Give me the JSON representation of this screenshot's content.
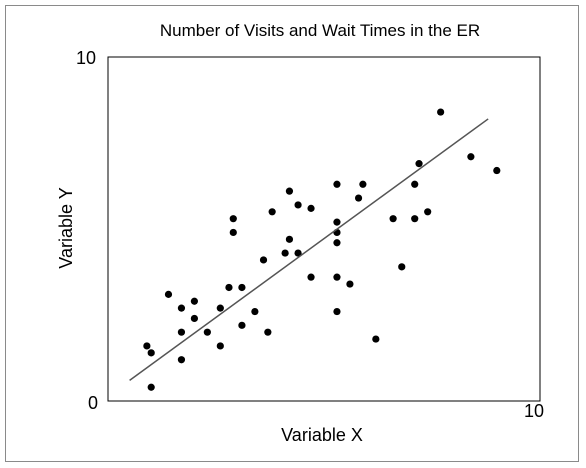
{
  "chart_data": {
    "type": "scatter",
    "title": "Number of Visits and Wait Times in the ER",
    "xlabel": "Variable X",
    "ylabel": "Variable Y",
    "xlim": [
      0,
      10
    ],
    "ylim": [
      0,
      10
    ],
    "x_tick_labels": [
      "10"
    ],
    "y_tick_labels": [
      "10",
      "0"
    ],
    "grid": false,
    "legend": "none",
    "colors": {
      "points": "#000000",
      "trend": "#555555",
      "axes": "#000000"
    },
    "points": [
      {
        "x": 0.9,
        "y": 1.6
      },
      {
        "x": 1.0,
        "y": 1.4
      },
      {
        "x": 1.0,
        "y": 0.4
      },
      {
        "x": 1.4,
        "y": 3.1
      },
      {
        "x": 1.7,
        "y": 2.7
      },
      {
        "x": 1.7,
        "y": 2.0
      },
      {
        "x": 1.7,
        "y": 1.2
      },
      {
        "x": 2.0,
        "y": 2.9
      },
      {
        "x": 2.0,
        "y": 2.4
      },
      {
        "x": 2.3,
        "y": 2.0
      },
      {
        "x": 2.6,
        "y": 2.7
      },
      {
        "x": 2.6,
        "y": 1.6
      },
      {
        "x": 2.8,
        "y": 3.3
      },
      {
        "x": 2.9,
        "y": 5.3
      },
      {
        "x": 2.9,
        "y": 4.9
      },
      {
        "x": 3.1,
        "y": 3.3
      },
      {
        "x": 3.1,
        "y": 2.2
      },
      {
        "x": 3.4,
        "y": 2.6
      },
      {
        "x": 3.6,
        "y": 4.1
      },
      {
        "x": 3.7,
        "y": 2.0
      },
      {
        "x": 3.8,
        "y": 5.5
      },
      {
        "x": 4.1,
        "y": 4.3
      },
      {
        "x": 4.2,
        "y": 4.7
      },
      {
        "x": 4.2,
        "y": 6.1
      },
      {
        "x": 4.4,
        "y": 4.3
      },
      {
        "x": 4.4,
        "y": 5.7
      },
      {
        "x": 4.7,
        "y": 5.6
      },
      {
        "x": 4.7,
        "y": 3.6
      },
      {
        "x": 5.3,
        "y": 6.3
      },
      {
        "x": 5.3,
        "y": 5.2
      },
      {
        "x": 5.3,
        "y": 4.9
      },
      {
        "x": 5.3,
        "y": 4.6
      },
      {
        "x": 5.3,
        "y": 3.6
      },
      {
        "x": 5.3,
        "y": 2.6
      },
      {
        "x": 5.6,
        "y": 3.4
      },
      {
        "x": 5.8,
        "y": 5.9
      },
      {
        "x": 5.9,
        "y": 6.3
      },
      {
        "x": 6.2,
        "y": 1.8
      },
      {
        "x": 6.6,
        "y": 5.3
      },
      {
        "x": 6.8,
        "y": 3.9
      },
      {
        "x": 7.1,
        "y": 6.3
      },
      {
        "x": 7.1,
        "y": 5.3
      },
      {
        "x": 7.2,
        "y": 6.9
      },
      {
        "x": 7.4,
        "y": 5.5
      },
      {
        "x": 7.7,
        "y": 8.4
      },
      {
        "x": 8.4,
        "y": 7.1
      },
      {
        "x": 9.0,
        "y": 6.7
      }
    ],
    "trendline": {
      "x": [
        0.5,
        8.8
      ],
      "y": [
        0.6,
        8.2
      ]
    }
  }
}
